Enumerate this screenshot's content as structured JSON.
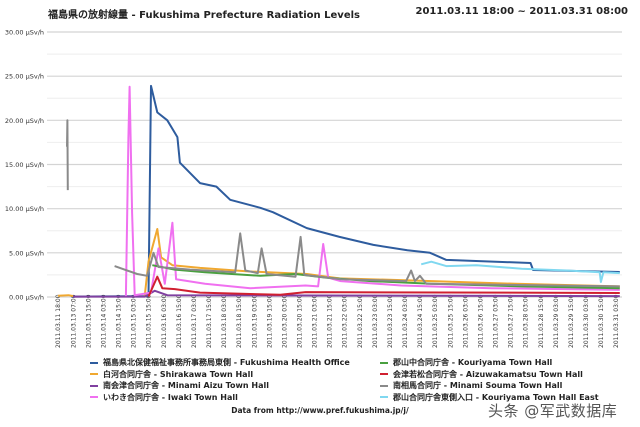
{
  "chart_data": {
    "type": "line",
    "title": "福島県の放射線量 - Fukushima Prefecture Radiation Levels",
    "subtitle": "2011.03.11 18:00 ~ 2011.03.31 08:00",
    "ylabel": "",
    "xlabel": "",
    "y_unit": "µSv/h",
    "ylim": [
      0,
      30
    ],
    "yticks": [
      "0.00 µSv/h",
      "5.00 µSv/h",
      "10.00 µSv/h",
      "15.00 µSv/h",
      "20.00 µSv/h",
      "25.00 µSv/h",
      "30.00 µSv/h"
    ],
    "ytick_values": [
      0,
      5,
      10,
      15,
      20,
      25,
      30
    ],
    "grid": true,
    "legend_placement": "bottom",
    "xticks": [
      "2011.03.11 18:00",
      "2011.03.13 07:00",
      "2011.03.13 15:00",
      "2011.03.14 03:00",
      "2011.03.14 15:00",
      "2011.03.15 03:00",
      "2011.03.15 15:00",
      "2011.03.16 03:00",
      "2011.03.16 15:00",
      "2011.03.17 03:00",
      "2011.03.17 15:00",
      "2011.03.18 03:00",
      "2011.03.18 15:00",
      "2011.03.19 03:00",
      "2011.03.19 15:00",
      "2011.03.20 03:00",
      "2011.03.20 15:00",
      "2011.03.21 03:00",
      "2011.03.21 15:00",
      "2011.03.22 03:00",
      "2011.03.22 15:00",
      "2011.03.23 03:00",
      "2011.03.23 15:00",
      "2011.03.24 03:00",
      "2011.03.24 15:00",
      "2011.03.25 03:00",
      "2011.03.25 15:00",
      "2011.03.26 03:00",
      "2011.03.26 15:00",
      "2011.03.27 03:00",
      "2011.03.27 15:00",
      "2011.03.28 03:00",
      "2011.03.28 15:00",
      "2011.03.29 03:00",
      "2011.03.29 15:00",
      "2011.03.30 03:00",
      "2011.03.30 15:00",
      "2011.03.31 03:00"
    ],
    "series": [
      {
        "name": "福島県北保健福祉事務所事務局東側 - Fukushima Health Office",
        "color": "#2e5c9e",
        "points": [
          [
            "2011.03.13 03:00",
            0.05
          ],
          [
            "2011.03.15 15:00",
            0.1
          ],
          [
            "2011.03.15 17:00",
            23.9
          ],
          [
            "2011.03.15 22:00",
            20.9
          ],
          [
            "2011.03.16 06:00",
            20.0
          ],
          [
            "2011.03.16 14:00",
            18.1
          ],
          [
            "2011.03.16 16:00",
            15.2
          ],
          [
            "2011.03.17 08:00",
            12.9
          ],
          [
            "2011.03.17 21:00",
            12.5
          ],
          [
            "2011.03.18 08:00",
            11.0
          ],
          [
            "2011.03.19 08:00",
            10.1
          ],
          [
            "2011.03.19 18:00",
            9.6
          ],
          [
            "2011.03.20 21:00",
            7.8
          ],
          [
            "2011.03.21 23:00",
            6.8
          ],
          [
            "2011.03.23 02:00",
            5.9
          ],
          [
            "2011.03.24 05:00",
            5.3
          ],
          [
            "2011.03.24 23:00",
            5.0
          ],
          [
            "2011.03.25 12:00",
            4.2
          ],
          [
            "2011.03.28 07:00",
            3.85
          ],
          [
            "2011.03.28 09:00",
            3.06
          ],
          [
            "2011.03.31 06:00",
            2.83
          ]
        ]
      },
      {
        "name": "白河合同庁舎 - Shirakawa Town Hall",
        "color": "#f0a830",
        "points": [
          [
            "2011.03.11 18:00",
            0.15
          ],
          [
            "2011.03.12 20:00",
            0.2
          ],
          [
            "2011.03.13 07:00",
            0.1
          ],
          [
            "2011.03.13 08:00",
            null
          ],
          [
            "2011.03.15 12:00",
            0.1
          ],
          [
            "2011.03.15 15:00",
            4.0
          ],
          [
            "2011.03.15 22:00",
            7.7
          ],
          [
            "2011.03.16 01:00",
            4.5
          ],
          [
            "2011.03.16 10:00",
            3.6
          ],
          [
            "2011.03.17 08:00",
            3.3
          ],
          [
            "2011.03.18 22:00",
            2.9
          ],
          [
            "2011.03.20 21:00",
            2.6
          ],
          [
            "2011.03.21 23:00",
            2.1
          ],
          [
            "2011.03.24 03:00",
            1.9
          ],
          [
            "2011.03.27 19:00",
            1.5
          ],
          [
            "2011.03.31 06:00",
            1.2
          ]
        ]
      },
      {
        "name": "南会津合同庁舎 - Minami Aizu Town Hall",
        "color": "#8040a0",
        "points": [
          [
            "2011.03.13 07:00",
            0.05
          ],
          [
            "2011.03.15 12:00",
            0.05
          ],
          [
            "2011.03.15 20:00",
            0.7
          ],
          [
            "2011.03.16 06:00",
            0.2
          ],
          [
            "2011.03.31 06:00",
            0.1
          ]
        ]
      },
      {
        "name": "いわき合同庁舎 - Iwaki Town Hall",
        "color": "#f070f0",
        "points": [
          [
            "2011.03.14 21:00",
            0.1
          ],
          [
            "2011.03.14 23:00",
            18.0
          ],
          [
            "2011.03.15 00:00",
            23.8
          ],
          [
            "2011.03.15 02:00",
            9.5
          ],
          [
            "2011.03.15 04:00",
            0.2
          ],
          [
            "2011.03.15 17:00",
            0.5
          ],
          [
            "2011.03.15 23:00",
            5.5
          ],
          [
            "2011.03.16 04:00",
            1.5
          ],
          [
            "2011.03.16 10:00",
            8.4
          ],
          [
            "2011.03.16 13:00",
            2.0
          ],
          [
            "2011.03.17 12:00",
            1.5
          ],
          [
            "2011.03.19 00:00",
            1.0
          ],
          [
            "2011.03.20 20:00",
            1.3
          ],
          [
            "2011.03.21 06:00",
            1.2
          ],
          [
            "2011.03.21 10:00",
            6.0
          ],
          [
            "2011.03.21 14:00",
            2.2
          ],
          [
            "2011.03.22 00:00",
            1.8
          ],
          [
            "2011.03.24 00:00",
            1.3
          ],
          [
            "2011.03.27 00:00",
            1.0
          ],
          [
            "2011.03.31 06:00",
            0.8
          ]
        ]
      },
      {
        "name": "郡山中合同庁舎 - Kouriyama Town Hall",
        "color": "#4aa040",
        "points": [
          [
            "2011.03.15 18:00",
            3.6
          ],
          [
            "2011.03.16 12:00",
            3.1
          ],
          [
            "2011.03.17 12:00",
            2.8
          ],
          [
            "2011.03.19 08:00",
            2.4
          ],
          [
            "2011.03.20 12:00",
            2.6
          ],
          [
            "2011.03.21 12:00",
            2.2
          ],
          [
            "2011.03.23 00:00",
            1.8
          ],
          [
            "2011.03.25 00:00",
            1.5
          ],
          [
            "2011.03.28 00:00",
            1.2
          ],
          [
            "2011.03.31 06:00",
            1.0
          ]
        ]
      },
      {
        "name": "会津若松合同庁舎 - Aizuwakamatsu Town Hall",
        "color": "#d02030",
        "points": [
          [
            "2011.03.15 15:00",
            0.05
          ],
          [
            "2011.03.15 22:00",
            2.3
          ],
          [
            "2011.03.16 02:00",
            1.0
          ],
          [
            "2011.03.16 12:00",
            0.9
          ],
          [
            "2011.03.17 08:00",
            0.5
          ],
          [
            "2011.03.20 00:00",
            0.25
          ],
          [
            "2011.03.20 20:00",
            0.55
          ],
          [
            "2011.03.31 06:00",
            0.45
          ]
        ]
      },
      {
        "name": "南相馬合同庁 - Minami Souma Town Hall",
        "color": "#8a8a8a",
        "points": [
          [
            "2011.03.12 16:00",
            17.0
          ],
          [
            "2011.03.12 17:00",
            20.0
          ],
          [
            "2011.03.12 18:00",
            12.1
          ],
          [
            "2011.03.12 19:00",
            null
          ],
          [
            "2011.03.13 12:00",
            3.8
          ],
          [
            "2011.03.13 13:00",
            null
          ],
          [
            "2011.03.14 12:00",
            3.5
          ],
          [
            "2011.03.15 06:00",
            2.6
          ],
          [
            "2011.03.15 14:00",
            2.4
          ],
          [
            "2011.03.15 19:00",
            5.0
          ],
          [
            "2011.03.15 23:00",
            3.4
          ],
          [
            "2011.03.17 00:00",
            3.1
          ],
          [
            "2011.03.18 12:00",
            2.8
          ],
          [
            "2011.03.18 16:00",
            7.2
          ],
          [
            "2011.03.18 20:00",
            3.0
          ],
          [
            "2011.03.19 06:00",
            2.7
          ],
          [
            "2011.03.19 09:00",
            5.5
          ],
          [
            "2011.03.19 13:00",
            2.6
          ],
          [
            "2011.03.20 12:00",
            2.3
          ],
          [
            "2011.03.20 16:00",
            6.8
          ],
          [
            "2011.03.20 19:00",
            2.5
          ],
          [
            "2011.03.22 00:00",
            2.0
          ],
          [
            "2011.03.24 04:00",
            1.8
          ],
          [
            "2011.03.24 08:00",
            3.0
          ],
          [
            "2011.03.24 11:00",
            1.8
          ],
          [
            "2011.03.24 15:00",
            2.4
          ],
          [
            "2011.03.24 20:00",
            1.5
          ],
          [
            "2011.03.31 06:00",
            1.2
          ]
        ]
      },
      {
        "name": "郡山合同庁舎東側入口 -  Kouriyama Town Hall East",
        "color": "#80d8f0",
        "points": [
          [
            "2011.03.24 16:00",
            3.7
          ],
          [
            "2011.03.25 00:00",
            4.0
          ],
          [
            "2011.03.25 12:00",
            3.5
          ],
          [
            "2011.03.26 12:00",
            3.6
          ],
          [
            "2011.03.28 00:00",
            3.2
          ],
          [
            "2011.03.29 12:00",
            3.0
          ],
          [
            "2011.03.30 14:00",
            2.8
          ],
          [
            "2011.03.30 15:00",
            1.7
          ],
          [
            "2011.03.30 17:00",
            2.8
          ],
          [
            "2011.03.31 06:00",
            2.7
          ]
        ]
      }
    ]
  },
  "source": "Data from http://www.pref.fukushima.jp/j/",
  "watermark": "头条 @军武数据库"
}
